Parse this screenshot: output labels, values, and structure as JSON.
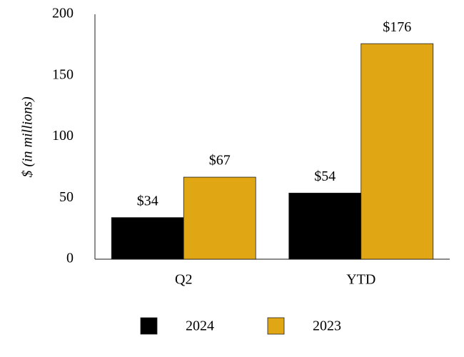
{
  "chart_data": {
    "type": "bar",
    "y_label": "$ (in millions)",
    "categories": [
      "Q2",
      "YTD"
    ],
    "series": [
      {
        "name": "2024",
        "color": "#000000",
        "values": [
          34,
          54
        ],
        "value_labels": [
          "$34",
          "$54"
        ]
      },
      {
        "name": "2023",
        "color": "#e0a614",
        "values": [
          67,
          176
        ],
        "value_labels": [
          "$67",
          "$176"
        ]
      }
    ],
    "ylim": [
      0,
      200
    ],
    "yticks": [
      0,
      50,
      100,
      150,
      200
    ],
    "grid": false,
    "legend": "bottom"
  }
}
